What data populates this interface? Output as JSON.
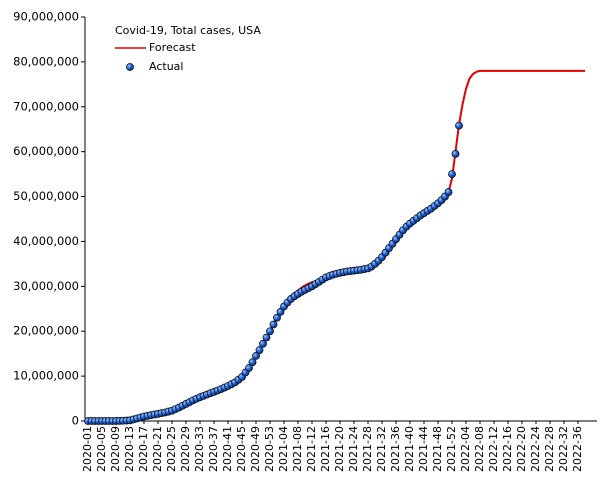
{
  "chart_data": {
    "type": "line",
    "legend_title": "Covid-19, Total cases, USA",
    "categories": [
      "2020-01",
      null,
      null,
      null,
      "2020-05",
      null,
      null,
      null,
      "2020-09",
      null,
      null,
      null,
      "2020-13",
      null,
      null,
      null,
      "2020-17",
      null,
      null,
      null,
      "2020-21",
      null,
      null,
      null,
      "2020-25",
      null,
      null,
      null,
      "2020-29",
      null,
      null,
      null,
      "2020-33",
      null,
      null,
      null,
      "2020-37",
      null,
      null,
      null,
      "2020-41",
      null,
      null,
      null,
      "2020-45",
      null,
      null,
      null,
      "2020-49",
      null,
      null,
      null,
      "2020-53",
      null,
      null,
      null,
      "2021-04",
      null,
      null,
      null,
      "2021-08",
      null,
      null,
      null,
      "2021-12",
      null,
      null,
      null,
      "2021-16",
      null,
      null,
      null,
      "2021-20",
      null,
      null,
      null,
      "2021-24",
      null,
      null,
      null,
      "2021-28",
      null,
      null,
      null,
      "2021-32",
      null,
      null,
      null,
      "2021-36",
      null,
      null,
      null,
      "2021-40",
      null,
      null,
      null,
      "2021-44",
      null,
      null,
      null,
      "2021-48",
      null,
      null,
      null,
      "2021-52",
      null,
      null,
      null,
      "2022-04",
      null,
      null,
      null,
      "2022-08",
      null,
      null,
      null,
      "2022-12",
      null,
      null,
      null,
      "2022-16",
      null,
      null,
      null,
      "2022-20",
      null,
      null,
      null,
      "2022-24",
      null,
      null,
      null,
      "2022-28",
      null,
      null,
      null,
      "2022-32",
      null,
      null,
      null,
      "2022-36",
      null,
      null
    ],
    "series": [
      {
        "name": "Forecast",
        "color": "#e00000",
        "style": "line",
        "values": [
          0,
          0,
          0,
          0,
          0,
          0,
          0,
          5000,
          10000,
          30000,
          50000,
          100000,
          150000,
          350000,
          550000,
          780000,
          1000000,
          1150000,
          1300000,
          1450000,
          1600000,
          1750000,
          1900000,
          2100000,
          2300000,
          2650000,
          3000000,
          3400000,
          3800000,
          4200000,
          4600000,
          4950000,
          5300000,
          5600000,
          5900000,
          6200000,
          6500000,
          6800000,
          7100000,
          7450000,
          7800000,
          8200000,
          8600000,
          9200000,
          9800000,
          10800000,
          11800000,
          13100000,
          14500000,
          15800000,
          17200000,
          18600000,
          20000000,
          21500000,
          23000000,
          24300000,
          25500000,
          26900000,
          27800000,
          28500000,
          29100000,
          29700000,
          30200000,
          30600000,
          30900000,
          31200000,
          31400000,
          31700000,
          32000000,
          32300000,
          32600000,
          32800000,
          33000000,
          33150000,
          33300000,
          33400000,
          33500000,
          33600000,
          33700000,
          33850000,
          34000000,
          34400000,
          35000000,
          35700000,
          36500000,
          37500000,
          38500000,
          39500000,
          40500000,
          41500000,
          42500000,
          43300000,
          44000000,
          44600000,
          45200000,
          45800000,
          46300000,
          46800000,
          47300000,
          47900000,
          48500000,
          49200000,
          50000000,
          51000000,
          54000000,
          60000000,
          66000000,
          70500000,
          74000000,
          76300000,
          77300000,
          77800000,
          78000000,
          78000000,
          78000000,
          78000000,
          78000000,
          78000000,
          78000000,
          78000000,
          78000000,
          78000000,
          78000000,
          78000000,
          78000000,
          78000000,
          78000000,
          78000000,
          78000000,
          78000000,
          78000000,
          78000000,
          78000000,
          78000000,
          78000000,
          78000000,
          78000000,
          78000000,
          78000000,
          78000000,
          78000000,
          78000000,
          78000000
        ]
      },
      {
        "name": "Actual",
        "color": "#1f5fd0",
        "style": "dots",
        "values": [
          0,
          0,
          0,
          0,
          0,
          0,
          0,
          5000,
          10000,
          30000,
          50000,
          100000,
          150000,
          350000,
          550000,
          780000,
          1000000,
          1150000,
          1300000,
          1450000,
          1600000,
          1750000,
          1900000,
          2100000,
          2300000,
          2650000,
          3000000,
          3400000,
          3800000,
          4200000,
          4600000,
          4950000,
          5300000,
          5600000,
          5900000,
          6200000,
          6500000,
          6800000,
          7100000,
          7450000,
          7800000,
          8200000,
          8600000,
          9200000,
          9800000,
          10800000,
          11800000,
          13100000,
          14500000,
          15800000,
          17200000,
          18600000,
          20000000,
          21500000,
          23000000,
          24300000,
          25500000,
          26400000,
          27200000,
          27800000,
          28300000,
          28800000,
          29200000,
          29600000,
          30000000,
          30500000,
          31000000,
          31500000,
          32000000,
          32300000,
          32600000,
          32800000,
          33000000,
          33150000,
          33300000,
          33400000,
          33500000,
          33600000,
          33700000,
          33850000,
          34000000,
          34400000,
          35000000,
          35700000,
          36500000,
          37500000,
          38500000,
          39500000,
          40500000,
          41500000,
          42500000,
          43300000,
          44000000,
          44600000,
          45200000,
          45800000,
          46300000,
          46800000,
          47300000,
          47900000,
          48500000,
          49200000,
          50000000,
          51000000,
          55000000,
          59500000,
          65800000,
          null,
          null,
          null,
          null,
          null,
          null,
          null,
          null,
          null,
          null,
          null,
          null,
          null,
          null,
          null,
          null,
          null,
          null,
          null,
          null,
          null,
          null,
          null,
          null,
          null,
          null,
          null,
          null,
          null,
          null,
          null,
          null,
          null,
          null,
          null,
          null
        ]
      }
    ],
    "ylim": [
      0,
      90000000
    ],
    "yticks": [
      0,
      {
        "value": 10000000,
        "label": "10,000,000"
      },
      {
        "value": 20000000,
        "label": "20,000,000"
      },
      {
        "value": 30000000,
        "label": "30,000,000"
      },
      {
        "value": 40000000,
        "label": "40,000,000"
      },
      {
        "value": 50000000,
        "label": "50,000,000"
      },
      {
        "value": 60000000,
        "label": "60,000,000"
      },
      {
        "value": 70000000,
        "label": "70,000,000"
      },
      {
        "value": 80000000,
        "label": "80,000,000"
      },
      {
        "value": 90000000,
        "label": "90,000,000"
      }
    ],
    "grid": false
  }
}
